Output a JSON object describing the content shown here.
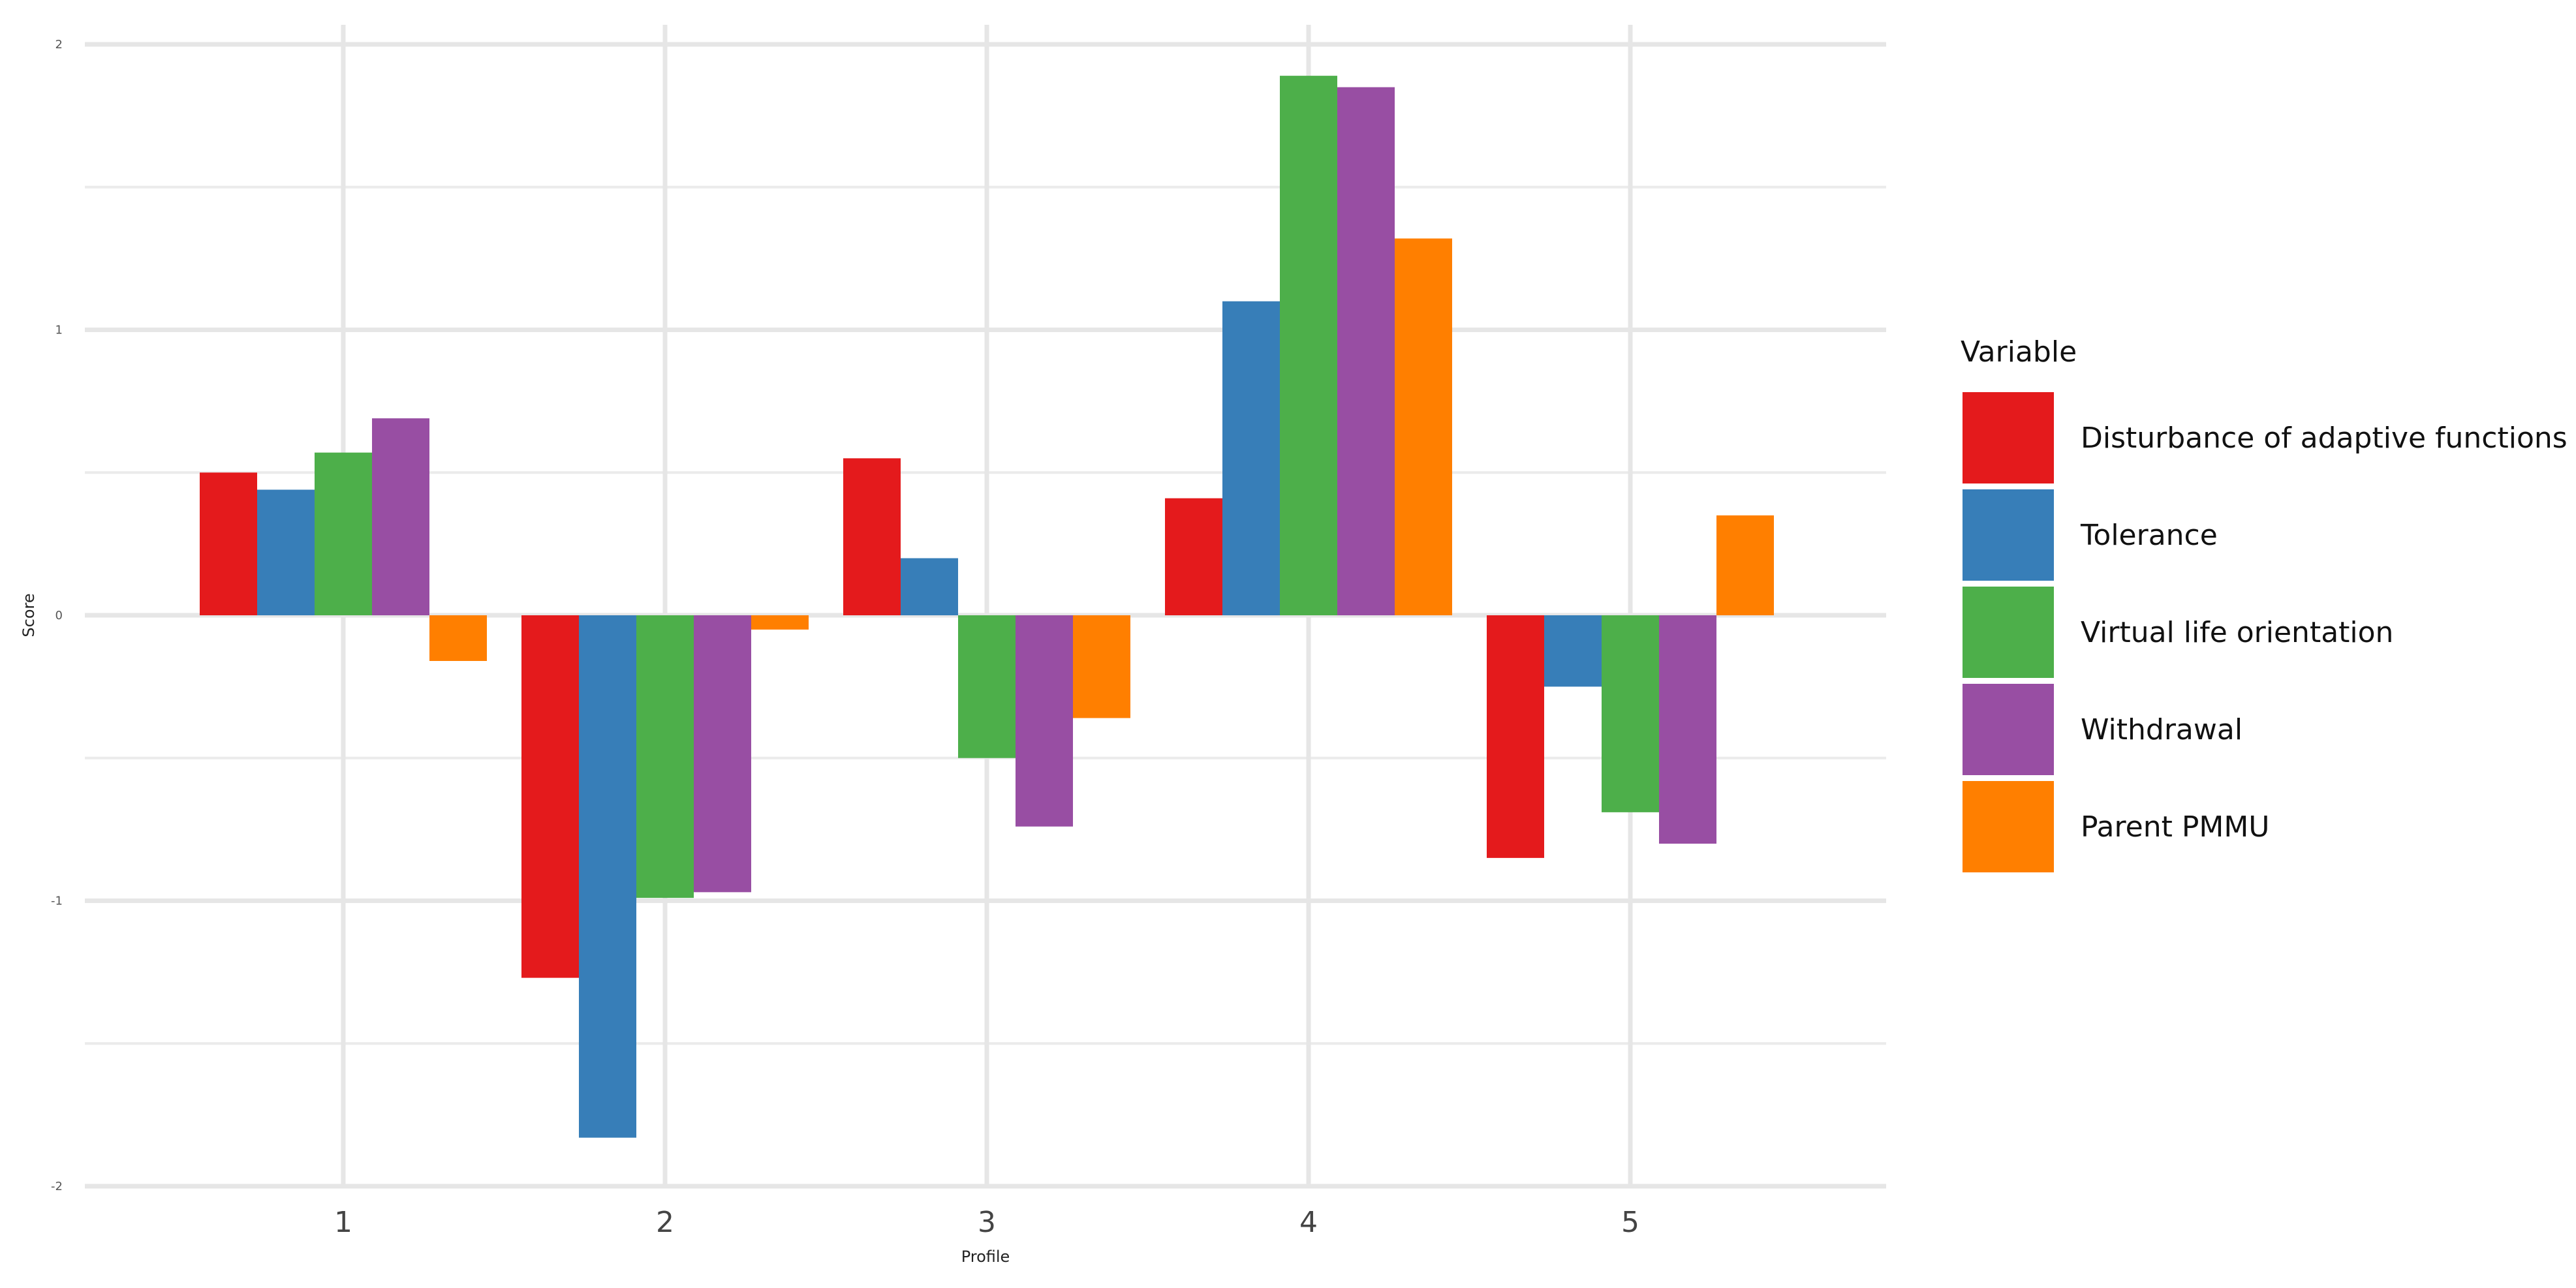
{
  "chart_data": {
    "type": "bar",
    "title": "",
    "xlabel": "Profile",
    "ylabel": "Score",
    "categories": [
      "1",
      "2",
      "3",
      "4",
      "5"
    ],
    "ylim": [
      -2,
      2
    ],
    "yticks": [
      "-2",
      "-1",
      "0",
      "1",
      "2"
    ],
    "grid": true,
    "legend": {
      "title": "Variable",
      "position": "right"
    },
    "series": [
      {
        "name": "Disturbance of adaptive functions",
        "color": "#E41A1C",
        "values": [
          0.5,
          -1.27,
          0.55,
          0.41,
          -0.85
        ]
      },
      {
        "name": "Tolerance",
        "color": "#377EB8",
        "values": [
          0.44,
          -1.83,
          0.2,
          1.1,
          -0.25
        ]
      },
      {
        "name": "Virtual life orientation",
        "color": "#4DAF4A",
        "values": [
          0.57,
          -0.99,
          -0.5,
          1.89,
          -0.69
        ]
      },
      {
        "name": "Withdrawal",
        "color": "#984EA3",
        "values": [
          0.69,
          -0.97,
          -0.74,
          1.85,
          -0.8
        ]
      },
      {
        "name": "Parent PMMU",
        "color": "#FF7F00",
        "values": [
          -0.16,
          -0.05,
          -0.36,
          1.32,
          0.35
        ]
      }
    ]
  }
}
